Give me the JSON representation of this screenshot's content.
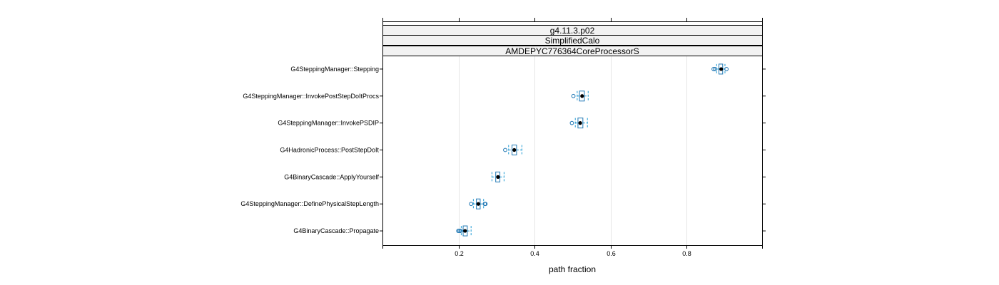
{
  "chart_data": {
    "type": "boxplot",
    "strips": [
      "g4.11.3.p02",
      "SimplifiedCalo",
      "AMDEPYC776364CoreProcessorS"
    ],
    "xlabel": "path fraction",
    "xlim": [
      0.0,
      1.0
    ],
    "xticks": [
      0.2,
      0.4,
      0.6,
      0.8
    ],
    "grid": true,
    "colors": {
      "box": "#1f77b4",
      "whisker": "#1f9bd4",
      "median": "#000000",
      "grid": "#e6e6e6"
    },
    "categories": [
      "G4SteppingManager::Stepping",
      "G4SteppingManager::InvokePostStepDoItProcs",
      "G4SteppingManager::InvokePSDIP",
      "G4HadronicProcess::PostStepDoIt",
      "G4BinaryCascade::ApplyYourself",
      "G4SteppingManager::DefinePhysicalStepLength",
      "G4BinaryCascade::Propagate"
    ],
    "boxes": [
      {
        "whisker_low": 0.88,
        "q1": 0.886,
        "median": 0.892,
        "q3": 0.896,
        "whisker_high": 0.902,
        "outliers": [
          0.872,
          0.876,
          0.906
        ]
      },
      {
        "whisker_low": 0.512,
        "q1": 0.518,
        "median": 0.525,
        "q3": 0.531,
        "whisker_high": 0.541,
        "outliers": [
          0.502
        ]
      },
      {
        "whisker_low": 0.507,
        "q1": 0.514,
        "median": 0.52,
        "q3": 0.527,
        "whisker_high": 0.539,
        "outliers": [
          0.498
        ]
      },
      {
        "whisker_low": 0.331,
        "q1": 0.34,
        "median": 0.346,
        "q3": 0.352,
        "whisker_high": 0.366,
        "outliers": [
          0.322
        ]
      },
      {
        "whisker_low": 0.287,
        "q1": 0.297,
        "median": 0.303,
        "q3": 0.308,
        "whisker_high": 0.319,
        "outliers": []
      },
      {
        "whisker_low": 0.238,
        "q1": 0.246,
        "median": 0.251,
        "q3": 0.256,
        "whisker_high": 0.265,
        "outliers": [
          0.232,
          0.268,
          0.27
        ]
      },
      {
        "whisker_low": 0.206,
        "q1": 0.211,
        "median": 0.216,
        "q3": 0.222,
        "whisker_high": 0.232,
        "outliers": [
          0.198,
          0.201,
          0.204
        ]
      }
    ]
  }
}
